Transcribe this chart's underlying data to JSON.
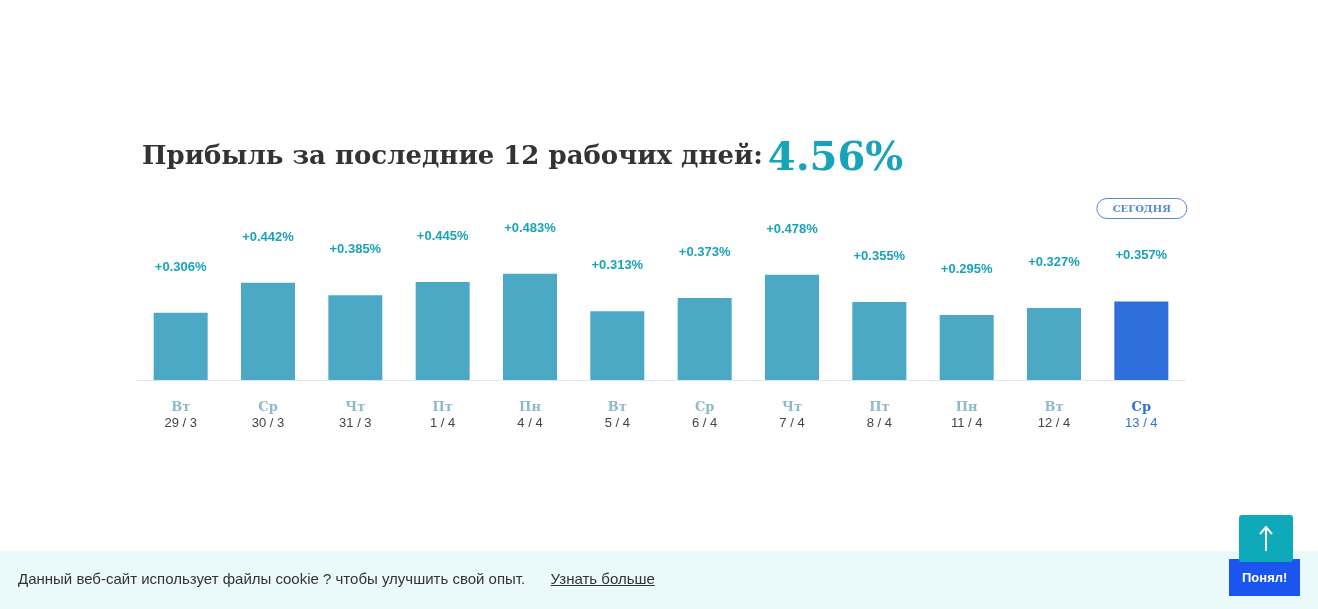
{
  "chart_data": {
    "type": "bar",
    "title": "Прибыль за последние 12 рабочих дней:",
    "subtitle": "4.56%",
    "categories": [
      "Вт\n29 / 3",
      "Ср\n30 / 3",
      "Чт\n31 / 3",
      "Пт\n1 / 4",
      "Пн\n4 / 4",
      "Вт\n5 / 4",
      "Ср\n6 / 4",
      "Чт\n7 / 4",
      "Пт\n8 / 4",
      "Пн\n11 / 4",
      "Вт\n12 / 4",
      "Ср\n13 / 4"
    ],
    "values": [
      0.306,
      0.442,
      0.385,
      0.445,
      0.483,
      0.313,
      0.373,
      0.478,
      0.355,
      0.295,
      0.327,
      0.357
    ],
    "value_labels": [
      "+0.306%",
      "+0.442%",
      "+0.385%",
      "+0.445%",
      "+0.483%",
      "+0.313%",
      "+0.373%",
      "+0.478%",
      "+0.355%",
      "+0.295%",
      "+0.327%",
      "+0.357%"
    ],
    "colors": [
      "#4ba9c6",
      "#4ba9c6",
      "#4ba9c6",
      "#4ba9c6",
      "#4ba9c6",
      "#4ba9c6",
      "#4ba9c6",
      "#4ba9c6",
      "#4ba9c6",
      "#4ba9c6",
      "#4ba9c6",
      "#2f6fdc"
    ],
    "tick_labels": "x",
    "annotations": [
      "СЕГОДНЯ",
      "Данный веб-сайт использует файлы cookie ? чтобы улучшить свой опыт.",
      "Узнать больше",
      "Понял!"
    ]
  }
}
